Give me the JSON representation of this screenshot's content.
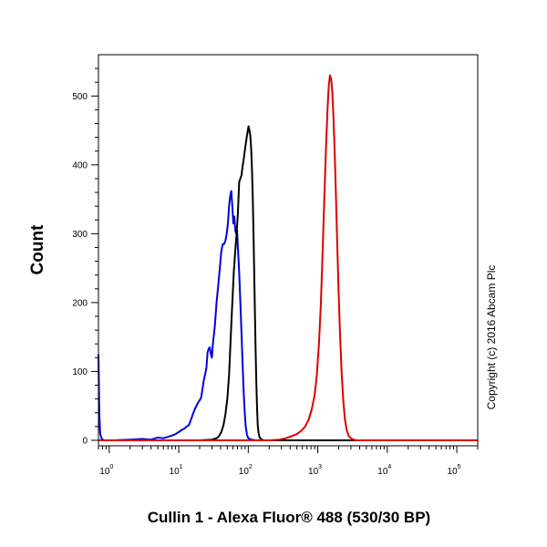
{
  "chart_data": {
    "type": "line",
    "title": "",
    "xlabel": "Cullin 1 - Alexa Fluor® 488 (530/30 BP)",
    "ylabel": "Count",
    "x_scale": "log",
    "xlim": [
      0.7,
      200000
    ],
    "ylim": [
      -8,
      560
    ],
    "x_ticks": [
      {
        "value": 1,
        "base": "10",
        "exp": "0"
      },
      {
        "value": 10,
        "base": "10",
        "exp": "1"
      },
      {
        "value": 100,
        "base": "10",
        "exp": "2"
      },
      {
        "value": 1000,
        "base": "10",
        "exp": "3"
      },
      {
        "value": 10000,
        "base": "10",
        "exp": "4"
      },
      {
        "value": 100000,
        "base": "10",
        "exp": "5"
      }
    ],
    "y_ticks": [
      0,
      100,
      200,
      300,
      400,
      500
    ],
    "grid": false,
    "legend": "none",
    "annotation": "Copyright (c) 2016 Abcam Plc",
    "series": [
      {
        "color": "#0000dd",
        "points": [
          [
            0.7,
            125
          ],
          [
            0.71,
            80
          ],
          [
            0.72,
            40
          ],
          [
            0.74,
            10
          ],
          [
            0.78,
            2
          ],
          [
            0.85,
            0
          ],
          [
            1.2,
            0
          ],
          [
            2.0,
            1
          ],
          [
            3.0,
            2
          ],
          [
            4.0,
            1
          ],
          [
            5.0,
            4
          ],
          [
            6.0,
            3
          ],
          [
            7.0,
            5
          ],
          [
            8.0,
            7
          ],
          [
            9.0,
            9
          ],
          [
            10,
            12
          ],
          [
            11,
            15
          ],
          [
            12,
            17
          ],
          [
            13,
            20
          ],
          [
            14,
            22
          ],
          [
            15,
            30
          ],
          [
            16,
            38
          ],
          [
            17,
            45
          ],
          [
            18,
            50
          ],
          [
            19,
            55
          ],
          [
            20,
            58
          ],
          [
            21,
            62
          ],
          [
            22,
            75
          ],
          [
            23,
            88
          ],
          [
            24,
            96
          ],
          [
            25,
            105
          ],
          [
            26,
            128
          ],
          [
            27,
            133
          ],
          [
            28,
            135
          ],
          [
            29,
            125
          ],
          [
            30,
            120
          ],
          [
            31,
            140
          ],
          [
            33,
            165
          ],
          [
            35,
            200
          ],
          [
            37,
            225
          ],
          [
            39,
            250
          ],
          [
            41,
            275
          ],
          [
            43,
            285
          ],
          [
            45,
            285
          ],
          [
            47,
            290
          ],
          [
            49,
            300
          ],
          [
            51,
            315
          ],
          [
            53,
            340
          ],
          [
            55,
            355
          ],
          [
            57,
            362
          ],
          [
            59,
            340
          ],
          [
            61,
            315
          ],
          [
            63,
            325
          ],
          [
            65,
            305
          ],
          [
            67,
            300
          ],
          [
            69,
            305
          ],
          [
            71,
            280
          ],
          [
            74,
            245
          ],
          [
            77,
            200
          ],
          [
            80,
            155
          ],
          [
            83,
            110
          ],
          [
            86,
            70
          ],
          [
            89,
            40
          ],
          [
            92,
            20
          ],
          [
            96,
            8
          ],
          [
            100,
            3
          ],
          [
            110,
            1
          ],
          [
            130,
            0
          ],
          [
            200000,
            0
          ]
        ]
      },
      {
        "color": "#000000",
        "points": [
          [
            0.7,
            0
          ],
          [
            20,
            0
          ],
          [
            30,
            1
          ],
          [
            35,
            3
          ],
          [
            38,
            6
          ],
          [
            41,
            12
          ],
          [
            44,
            22
          ],
          [
            47,
            38
          ],
          [
            50,
            60
          ],
          [
            53,
            95
          ],
          [
            56,
            150
          ],
          [
            59,
            200
          ],
          [
            62,
            245
          ],
          [
            65,
            275
          ],
          [
            68,
            300
          ],
          [
            71,
            330
          ],
          [
            74,
            375
          ],
          [
            77,
            380
          ],
          [
            80,
            385
          ],
          [
            83,
            398
          ],
          [
            86,
            408
          ],
          [
            89,
            420
          ],
          [
            92,
            430
          ],
          [
            95,
            440
          ],
          [
            98,
            448
          ],
          [
            101,
            456
          ],
          [
            104,
            450
          ],
          [
            107,
            443
          ],
          [
            110,
            425
          ],
          [
            113,
            395
          ],
          [
            116,
            355
          ],
          [
            119,
            300
          ],
          [
            122,
            240
          ],
          [
            125,
            180
          ],
          [
            128,
            125
          ],
          [
            131,
            80
          ],
          [
            134,
            45
          ],
          [
            137,
            22
          ],
          [
            141,
            10
          ],
          [
            146,
            4
          ],
          [
            155,
            1
          ],
          [
            170,
            0
          ],
          [
            200000,
            0
          ]
        ]
      },
      {
        "color": "#dd0000",
        "points": [
          [
            0.7,
            0
          ],
          [
            200,
            0
          ],
          [
            280,
            1
          ],
          [
            350,
            3
          ],
          [
            420,
            6
          ],
          [
            500,
            9
          ],
          [
            580,
            14
          ],
          [
            660,
            20
          ],
          [
            740,
            30
          ],
          [
            820,
            45
          ],
          [
            900,
            65
          ],
          [
            970,
            95
          ],
          [
            1040,
            140
          ],
          [
            1110,
            200
          ],
          [
            1180,
            280
          ],
          [
            1250,
            360
          ],
          [
            1320,
            430
          ],
          [
            1380,
            480
          ],
          [
            1440,
            515
          ],
          [
            1500,
            530
          ],
          [
            1560,
            525
          ],
          [
            1620,
            505
          ],
          [
            1680,
            470
          ],
          [
            1750,
            420
          ],
          [
            1820,
            360
          ],
          [
            1900,
            290
          ],
          [
            1990,
            220
          ],
          [
            2090,
            155
          ],
          [
            2200,
            100
          ],
          [
            2320,
            60
          ],
          [
            2450,
            32
          ],
          [
            2600,
            15
          ],
          [
            2800,
            6
          ],
          [
            3100,
            2
          ],
          [
            3500,
            0
          ],
          [
            200000,
            0
          ]
        ]
      }
    ]
  }
}
